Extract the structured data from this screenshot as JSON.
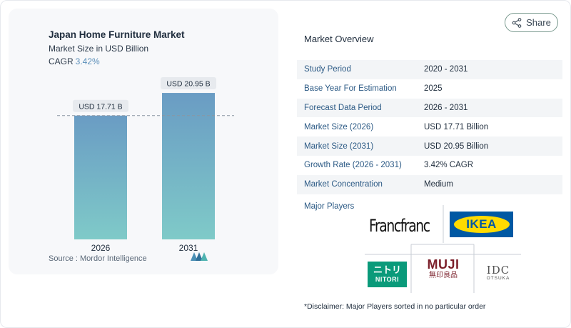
{
  "chart": {
    "title": "Japan Home Furniture Market",
    "subtitle": "Market Size in USD Billion",
    "cagr_label": "CAGR",
    "cagr_value": "3.42%",
    "source": "Source :  Mordor Intelligence",
    "bar_labels": [
      "USD 17.71 B",
      "USD 20.95 B"
    ],
    "colors": {
      "bar_top": "#6a9cc4",
      "bar_bottom": "#7fcac8",
      "label_bg": "#e7eaee"
    }
  },
  "chart_data": {
    "type": "bar",
    "categories": [
      "2026",
      "2031"
    ],
    "values": [
      17.71,
      20.95
    ],
    "title": "Japan Home Furniture Market",
    "ylabel": "Market Size in USD Billion",
    "ylim": [
      0,
      23
    ]
  },
  "share": {
    "label": "Share"
  },
  "overview": {
    "title": "Market Overview",
    "rows": [
      {
        "k": "Study Period",
        "v": "2020 - 2031"
      },
      {
        "k": "Base Year For Estimation",
        "v": "2025"
      },
      {
        "k": "Forecast Data Period",
        "v": "2026 - 2031"
      },
      {
        "k": "Market Size (2026)",
        "v": "USD 17.71 Billion"
      },
      {
        "k": "Market Size (2031)",
        "v": "USD 20.95 Billion"
      },
      {
        "k": "Growth Rate (2026 - 2031)",
        "v": "3.42% CAGR"
      },
      {
        "k": "Market Concentration",
        "v": "Medium"
      }
    ]
  },
  "players": {
    "label": "Major Players",
    "francfranc": "Francfranc",
    "ikea": "IKEA",
    "nitori_jp": "ニトリ",
    "nitori": "NITORI",
    "muji": "MUJI",
    "muji_jp": "無印良品",
    "idc": "IDC",
    "otsuka": "OTSUKA"
  },
  "disclaimer": "*Disclaimer: Major Players sorted in no particular order"
}
